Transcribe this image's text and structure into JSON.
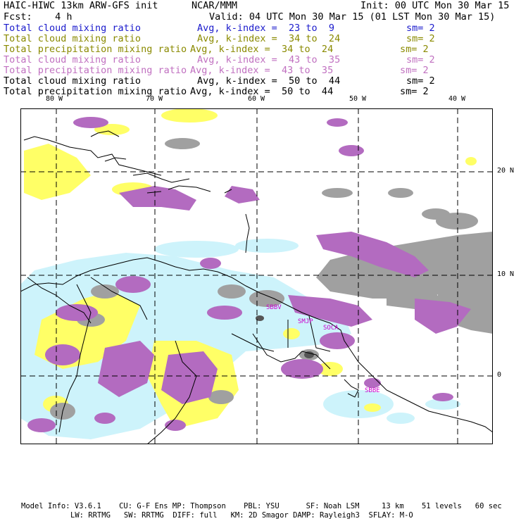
{
  "header": {
    "model_title": "HAIC-HIWC 13km ARW-GFS init",
    "org": "NCAR/MMM",
    "init": "Init: 00 UTC Mon 30 Mar 15",
    "fcst": "Fcst:    4 h",
    "valid": "Valid: 04 UTC Mon 30 Mar 15 (01 LST Mon 30 Mar 15)"
  },
  "fields": [
    {
      "name": "Total cloud mixing ratio",
      "avg": "Avg, k-index =  23 to  9",
      "sm": "sm= 2",
      "color": "#1a1acc"
    },
    {
      "name": "Total cloud mixing ratio",
      "avg": "Avg, k-index =  34 to  24",
      "sm": "sm= 2",
      "color": "#8a8a00"
    },
    {
      "name": "Total precipitation mixing ratio",
      "avg": "Avg, k-index =  34 to  24",
      "sm": "sm= 2",
      "color": "#8a8a00"
    },
    {
      "name": "Total cloud mixing ratio",
      "avg": "Avg, k-index =  43 to  35",
      "sm": "sm= 2",
      "color": "#c070c0"
    },
    {
      "name": "Total precipitation mixing ratio",
      "avg": "Avg, k-index =  43 to  35",
      "sm": "sm= 2",
      "color": "#c070c0"
    },
    {
      "name": "Total cloud mixing ratio",
      "avg": "Avg, k-index =  50 to  44",
      "sm": "sm= 2",
      "color": "#000000"
    },
    {
      "name": "Total precipitation mixing ratio",
      "avg": "Avg, k-index =  50 to  44",
      "sm": "sm= 2",
      "color": "#000000"
    }
  ],
  "map": {
    "lon_labels": [
      "80 W",
      "70 W",
      "60 W",
      "50 W",
      "40 W"
    ],
    "lat_labels": [
      "20 N",
      "10 N",
      "0"
    ],
    "stations": [
      "SBBV",
      "SMJP",
      "SOCA",
      "SBBE"
    ],
    "colors": {
      "gray": "#a0a0a0",
      "dark_gray": "#555555",
      "purple": "#b36bc0",
      "yellow": "#ffff66",
      "cyan": "#cdf3fb",
      "station": "#cc00cc"
    }
  },
  "footer": {
    "line1": "Model Info: V3.6.1    CU: G-F Ens MP: Thompson    PBL: YSU      SF: Noah LSM     13 km    51 levels   60 sec",
    "line2": "LW: RRTMG   SW: RRTMG  DIFF: full   KM: 2D Smagor DAMP: Rayleigh3  SFLAY: M-O"
  }
}
